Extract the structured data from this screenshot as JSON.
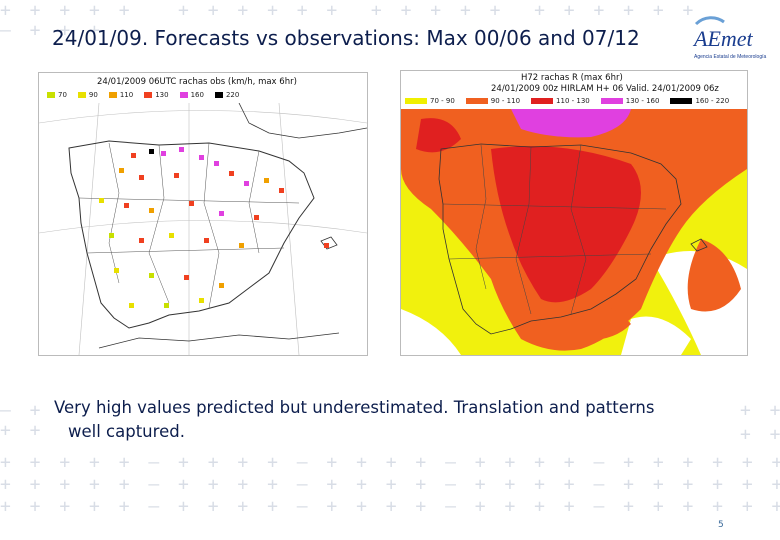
{
  "slide": {
    "title": "24/01/09. Forecasts vs observations: Max 00/06 and 07/12",
    "caption_line1": "Very high values predicted but underestimated. Translation and patterns",
    "caption_line2": "well captured.",
    "page_number": "5"
  },
  "logo": {
    "text": "AEmet",
    "subtext": "Agencia Estatal de Meteorología",
    "colors": {
      "main": "#1a3d8f",
      "accent": "#6aa0d6"
    }
  },
  "left_map": {
    "title": "24/01/2009 06UTC   rachas obs (km/h, max 6hr)",
    "legend": [
      {
        "label": "70",
        "color": "#c8e000"
      },
      {
        "label": "90",
        "color": "#e8e000"
      },
      {
        "label": "110",
        "color": "#f0a000"
      },
      {
        "label": "130",
        "color": "#f04020"
      },
      {
        "label": "160",
        "color": "#e040e0"
      },
      {
        "label": "220",
        "color": "#000000"
      }
    ]
  },
  "right_map": {
    "title_line1": "H72   rachas R (max 6hr)",
    "title_line2": "24/01/2009 00z  HIRLAM  H+ 06  Valid. 24/01/2009 06z",
    "legend": [
      {
        "label": "70 - 90",
        "color": "#f0f000"
      },
      {
        "label": "90 - 110",
        "color": "#f06020"
      },
      {
        "label": "110 - 130",
        "color": "#e02020"
      },
      {
        "label": "130 - 160",
        "color": "#e040e0"
      },
      {
        "label": "160 - 220",
        "color": "#000000"
      }
    ]
  }
}
